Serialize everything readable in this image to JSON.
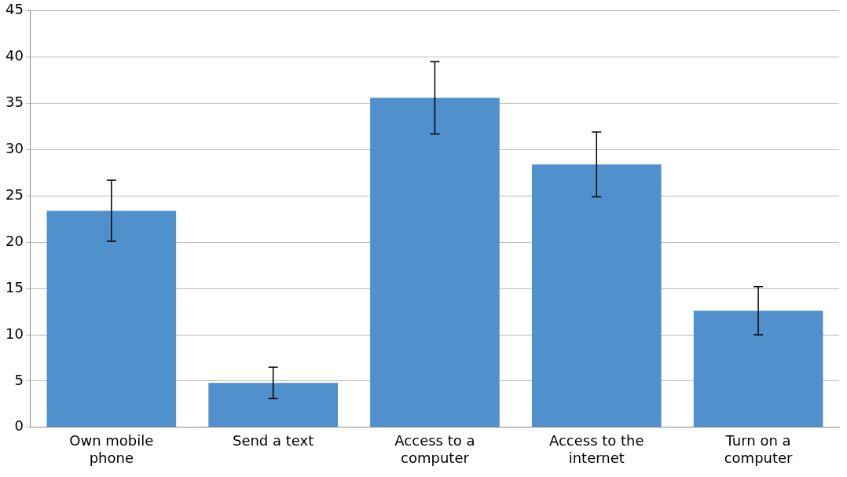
{
  "chart_data": {
    "type": "bar",
    "categories": [
      "Own mobile phone",
      "Send a text",
      "Access to a computer",
      "Access to the internet",
      "Turn on a computer"
    ],
    "values": [
      23.4,
      4.8,
      35.6,
      28.4,
      12.6
    ],
    "errors": [
      3.3,
      1.7,
      3.9,
      3.5,
      2.6
    ],
    "color": "#4f90cd",
    "ylim": [
      0,
      45
    ],
    "yticks": [
      0,
      5,
      10,
      15,
      20,
      25,
      30,
      35,
      40,
      45
    ],
    "grid": "y"
  }
}
